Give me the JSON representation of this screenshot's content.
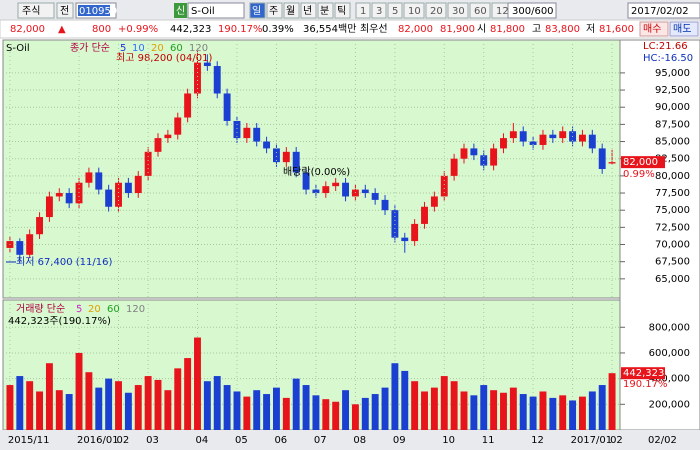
{
  "toolbar": {
    "market": "주식",
    "prev": "전",
    "code": "010950",
    "new_badge": "신",
    "name": "S-Oil",
    "periods": [
      "일",
      "주",
      "월",
      "년",
      "분",
      "틱"
    ],
    "intervals": [
      "1",
      "3",
      "5",
      "10",
      "20",
      "30",
      "60",
      "120"
    ],
    "count": "300/600",
    "date": "2017/02/02"
  },
  "quote": {
    "price": "82,000",
    "arrow": "▲",
    "change": "800",
    "change_pct": "+0.99%",
    "volume": "442,323",
    "volume_ratio": "190.17%",
    "turnover": "0.39%",
    "amount": "36,554백만",
    "best_label": "최우선",
    "ask": "82,000",
    "bid": "81,900",
    "open_label": "시",
    "open": "81,800",
    "high_label": "고",
    "high": "83,800",
    "low_label": "저",
    "low": "81,600",
    "buy": "매수",
    "sell": "매도"
  },
  "chart_data": [
    {
      "type": "candlestick",
      "title": "S-Oil",
      "legend_label": "종가 단순",
      "ma_periods": [
        5,
        10,
        20,
        60,
        120
      ],
      "ma_colors": [
        "#2030e0",
        "#3070ff",
        "#e0a000",
        "#20a020",
        "#808080"
      ],
      "up_color": "#e8141c",
      "down_color": "#1b3fd0",
      "categories": [
        "2015/11",
        null,
        null,
        null,
        null,
        null,
        null,
        "2016/01",
        null,
        null,
        null,
        "02",
        null,
        null,
        "03",
        null,
        null,
        null,
        null,
        "04",
        null,
        null,
        null,
        "05",
        null,
        null,
        null,
        "06",
        null,
        null,
        null,
        "07",
        null,
        null,
        null,
        "08",
        null,
        null,
        null,
        "09",
        null,
        null,
        null,
        null,
        "10",
        null,
        null,
        null,
        "11",
        null,
        null,
        null,
        null,
        "12",
        null,
        null,
        null,
        "2017/01",
        null,
        null,
        null,
        "02"
      ],
      "open": [
        69500,
        70500,
        68500,
        71500,
        74000,
        77000,
        77500,
        76000,
        79000,
        80500,
        78000,
        75500,
        79000,
        77500,
        80000,
        83500,
        85500,
        86000,
        88500,
        92000,
        96500,
        96000,
        92000,
        88000,
        85500,
        87000,
        85000,
        84000,
        82000,
        83500,
        80500,
        78000,
        77500,
        78500,
        79000,
        77000,
        78000,
        77500,
        76500,
        75000,
        71000,
        70500,
        73000,
        75500,
        77000,
        80000,
        82500,
        84000,
        83000,
        81500,
        84000,
        85500,
        86500,
        85000,
        84500,
        86000,
        85500,
        86500,
        85000,
        86000,
        84000,
        81800
      ],
      "high": [
        71200,
        70900,
        72200,
        74700,
        77700,
        78200,
        78200,
        79700,
        81200,
        81200,
        78700,
        79700,
        79700,
        80700,
        84200,
        86200,
        86700,
        89200,
        92700,
        98200,
        97700,
        96700,
        92700,
        88700,
        87700,
        87700,
        85700,
        84700,
        84200,
        84200,
        81200,
        78700,
        79200,
        79700,
        79700,
        78700,
        78700,
        78200,
        77200,
        75700,
        71700,
        73700,
        76200,
        77700,
        80700,
        83200,
        84700,
        84700,
        83700,
        84700,
        86200,
        87700,
        87200,
        85700,
        86700,
        86700,
        87200,
        87200,
        86700,
        86700,
        84700,
        83800
      ],
      "low": [
        68800,
        67400,
        68000,
        70800,
        73300,
        76300,
        75300,
        75300,
        78300,
        77300,
        74800,
        74800,
        76800,
        76800,
        79300,
        82800,
        84800,
        85300,
        87800,
        91300,
        95300,
        91300,
        87300,
        84800,
        84800,
        84300,
        83300,
        81300,
        81300,
        79800,
        77300,
        76800,
        76800,
        77800,
        76300,
        76300,
        76800,
        75800,
        74300,
        70300,
        68800,
        69800,
        72300,
        74800,
        76300,
        79300,
        81800,
        82300,
        80800,
        80800,
        83300,
        84800,
        84300,
        83800,
        83800,
        84800,
        84800,
        84300,
        84300,
        83300,
        80300,
        81600
      ],
      "close": [
        70500,
        68500,
        71500,
        74000,
        77000,
        77500,
        76000,
        79000,
        80500,
        78000,
        75500,
        79000,
        77500,
        80000,
        83500,
        85500,
        86000,
        88500,
        92000,
        96500,
        96000,
        92000,
        88000,
        85500,
        87000,
        85000,
        84000,
        82000,
        83500,
        80500,
        78000,
        77500,
        78500,
        79000,
        77000,
        78000,
        77500,
        76500,
        75000,
        71000,
        70500,
        73000,
        75500,
        77000,
        80000,
        82500,
        84000,
        83000,
        81500,
        84000,
        85500,
        86500,
        85000,
        84500,
        86000,
        85500,
        86500,
        85000,
        86000,
        84000,
        81000,
        82000
      ],
      "ylim": [
        62500,
        99500
      ],
      "yticks": [
        {
          "value": 65000,
          "label": "65,000"
        },
        {
          "value": 67500,
          "label": "67,500"
        },
        {
          "value": 70000,
          "label": "70,000"
        },
        {
          "value": 72500,
          "label": "72,500"
        },
        {
          "value": 75000,
          "label": "75,000"
        },
        {
          "value": 77500,
          "label": "77,500"
        },
        {
          "value": 80000,
          "label": "80,000"
        },
        {
          "value": 82500,
          "label": "82,500"
        },
        {
          "value": 85000,
          "label": "85,000"
        },
        {
          "value": 87500,
          "label": "87,500"
        },
        {
          "value": 90000,
          "label": "90,000"
        },
        {
          "value": 92500,
          "label": "92,500"
        },
        {
          "value": 95000,
          "label": "95,000"
        }
      ],
      "grid": true,
      "annotations": {
        "high": "최고 98,200 (04/01)",
        "low": "최저 67,400 (11/16)",
        "dividend": "배당락(0.00%)",
        "lc": "LC:21.66",
        "hc": "HC:-16.50"
      },
      "last_price": {
        "value": 82000,
        "label": "82,000"
      },
      "last_change": "0.99%"
    },
    {
      "type": "bar",
      "title": "거래량 단순",
      "ma_periods": [
        5,
        20,
        60,
        120
      ],
      "ma_colors": [
        "#d030d0",
        "#e0a000",
        "#20a020",
        "#808080"
      ],
      "summary": "442,323주(190.17%)",
      "values": [
        350000,
        420000,
        380000,
        300000,
        520000,
        310000,
        280000,
        600000,
        450000,
        330000,
        400000,
        380000,
        290000,
        350000,
        420000,
        390000,
        310000,
        480000,
        560000,
        720000,
        380000,
        420000,
        350000,
        300000,
        260000,
        310000,
        280000,
        330000,
        250000,
        400000,
        350000,
        270000,
        240000,
        220000,
        310000,
        200000,
        250000,
        280000,
        330000,
        520000,
        460000,
        380000,
        300000,
        330000,
        420000,
        380000,
        300000,
        270000,
        350000,
        310000,
        290000,
        330000,
        280000,
        260000,
        300000,
        250000,
        270000,
        230000,
        260000,
        300000,
        350000,
        442323
      ],
      "ylim": [
        0,
        950000
      ],
      "yticks": [
        {
          "value": 200000,
          "label": "200,000"
        },
        {
          "value": 400000,
          "label": "400,000"
        },
        {
          "value": 600000,
          "label": "600,000"
        },
        {
          "value": 800000,
          "label": "800,000"
        }
      ],
      "grid": true,
      "last_value": {
        "value": 442323,
        "label": "442,323"
      },
      "last_ratio": "190.17%",
      "corner_date": "02/02"
    }
  ]
}
